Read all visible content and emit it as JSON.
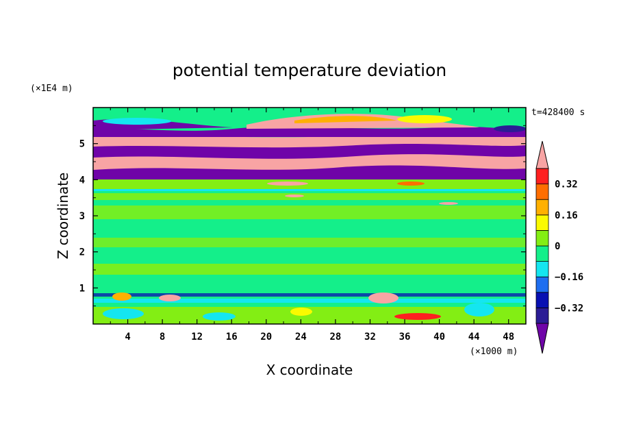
{
  "chart_data": {
    "type": "heatmap",
    "title": "potential temperature deviation",
    "xlabel": "X coordinate",
    "ylabel": "Z coordinate",
    "x_unit": "(×1000 m)",
    "y_unit": "(×1E4 m)",
    "time_label": "t=428400 s",
    "xlim": [
      0,
      50
    ],
    "ylim": [
      0,
      6
    ],
    "x_ticks": [
      4,
      8,
      12,
      16,
      20,
      24,
      28,
      32,
      36,
      40,
      44,
      48
    ],
    "x_tick_labels": [
      "4",
      "8",
      "12",
      "16",
      "20",
      "24",
      "28",
      "32",
      "36",
      "40",
      "44",
      "48"
    ],
    "y_ticks": [
      1,
      2,
      3,
      4,
      5
    ],
    "y_tick_labels": [
      "1",
      "2",
      "3",
      "4",
      "5"
    ],
    "colorbar": {
      "levels": [
        -0.4,
        -0.32,
        -0.24,
        -0.16,
        -0.08,
        0,
        0.08,
        0.16,
        0.24,
        0.32,
        0.4
      ],
      "tick_values": [
        0.32,
        0.16,
        0,
        -0.16,
        -0.32
      ],
      "tick_labels": [
        "0.32",
        "0.16",
        "0",
        "−0.16",
        "−0.32"
      ],
      "colors": [
        "#6f04a8",
        "#2b1c95",
        "#0810b2",
        "#1e6ef0",
        "#14e6f0",
        "#14ef8a",
        "#83ee14",
        "#fafa00",
        "#ffb000",
        "#ff6e00",
        "#ff2020",
        "#f8a4a4"
      ],
      "extend": "both"
    }
  }
}
